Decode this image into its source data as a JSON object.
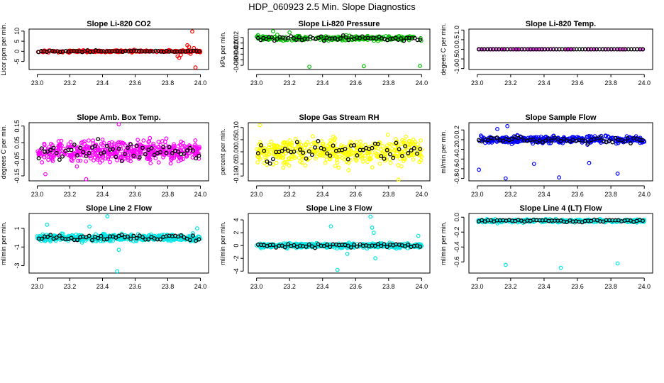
{
  "figure": {
    "title": "HDP_060923  2.5 Min. Slope Diagnostics",
    "highlight_color": "#000000",
    "background_color": "#ffffff"
  },
  "chart_data": [
    {
      "type": "scatter",
      "title": "Slope Li-820 CO2",
      "xlabel": "",
      "ylabel": "Licor ppm per min.",
      "color": "#ff0000",
      "xlim": [
        22.95,
        24.05
      ],
      "ylim": [
        -9,
        11
      ],
      "xticks": [
        "23.0",
        "23.2",
        "23.4",
        "23.6",
        "23.8",
        "24.0"
      ],
      "yticks": [
        "-5",
        "0",
        "5",
        "10"
      ],
      "x_range": [
        23.0,
        24.0
      ],
      "center": 0,
      "spread": 0.5,
      "n_points": 280,
      "n_highlight": 60,
      "seed": 11,
      "outliers": [
        [
          23.86,
          -2.5
        ],
        [
          23.87,
          -3.2
        ],
        [
          23.88,
          -1.8
        ],
        [
          23.92,
          3.0
        ],
        [
          23.93,
          2.2
        ],
        [
          23.95,
          9.8
        ],
        [
          23.97,
          -8.0
        ],
        [
          23.96,
          1.6
        ],
        [
          23.94,
          -1.2
        ]
      ]
    },
    {
      "type": "scatter",
      "title": "Slope Li-820 Pressure",
      "xlabel": "",
      "ylabel": "kPa per min.",
      "color": "#00c000",
      "xlim": [
        22.95,
        24.05
      ],
      "ylim": [
        -0.095,
        0.05
      ],
      "xticks": [
        "23.0",
        "23.2",
        "23.4",
        "23.6",
        "23.8",
        "24.0"
      ],
      "yticks": [
        "-0.08",
        "-0.06",
        "-0.04",
        "-0.02",
        "0.00",
        "0.02"
      ],
      "x_range": [
        23.0,
        24.0
      ],
      "center": 0.017,
      "spread": 0.009,
      "n_points": 230,
      "n_highlight": 60,
      "seed": 23,
      "outliers": [
        [
          23.32,
          -0.085
        ],
        [
          23.65,
          -0.083
        ],
        [
          23.99,
          -0.082
        ],
        [
          23.1,
          0.042
        ],
        [
          23.2,
          0.038
        ]
      ]
    },
    {
      "type": "scatter",
      "title": "Slope Li-820 Temp.",
      "xlabel": "",
      "ylabel": "degees C per min.",
      "color": "#ff00ff",
      "xlim": [
        22.95,
        24.05
      ],
      "ylim": [
        -1.05,
        1.05
      ],
      "xticks": [
        "23.0",
        "23.2",
        "23.4",
        "23.6",
        "23.8",
        "24.0"
      ],
      "yticks": [
        "-1.0",
        "-0.5",
        "0.0",
        "0.5",
        "1.0"
      ],
      "x_range": [
        23.0,
        24.0
      ],
      "center": 0,
      "spread": 0,
      "n_points": 60,
      "n_highlight": 58,
      "seed": 5,
      "outliers": []
    },
    {
      "type": "scatter",
      "title": "Slope Amb. Box Temp.",
      "xlabel": "",
      "ylabel": "degrees C per min.",
      "color": "#ff00ff",
      "xlim": [
        22.95,
        24.05
      ],
      "ylim": [
        -0.18,
        0.17
      ],
      "xticks": [
        "23.0",
        "23.2",
        "23.4",
        "23.6",
        "23.8",
        "24.0"
      ],
      "yticks": [
        "-0.15",
        "-0.05",
        "0.05",
        "0.15"
      ],
      "x_range": [
        23.0,
        24.0
      ],
      "center": 0,
      "spread": 0.06,
      "n_points": 450,
      "n_highlight": 55,
      "seed": 37,
      "outliers": [
        [
          23.3,
          -0.17
        ],
        [
          23.5,
          0.16
        ],
        [
          23.05,
          -0.14
        ]
      ]
    },
    {
      "type": "scatter",
      "title": "Slope Gas Stream RH",
      "xlabel": "",
      "ylabel": "percent per min.",
      "color": "#ffff00",
      "xlim": [
        22.95,
        24.05
      ],
      "ylim": [
        -0.12,
        0.12
      ],
      "xticks": [
        "23.0",
        "23.2",
        "23.4",
        "23.6",
        "23.8",
        "24.0"
      ],
      "yticks": [
        "-0.10",
        "-0.05",
        "0.00",
        "0.05",
        "0.10"
      ],
      "x_range": [
        23.0,
        24.0
      ],
      "center": 0,
      "spread": 0.05,
      "n_points": 450,
      "n_highlight": 55,
      "seed": 41,
      "outliers": [
        [
          23.86,
          -0.115
        ],
        [
          23.02,
          0.11
        ]
      ]
    },
    {
      "type": "scatter",
      "title": "Slope Sample Flow",
      "xlabel": "",
      "ylabel": "ml/min per min.",
      "color": "#0000ff",
      "xlim": [
        22.95,
        24.05
      ],
      "ylim": [
        -0.85,
        0.35
      ],
      "xticks": [
        "23.0",
        "23.2",
        "23.4",
        "23.6",
        "23.8",
        "24.0"
      ],
      "yticks": [
        "-0.8",
        "-0.6",
        "-0.4",
        "-0.2",
        "0.0",
        "0.2"
      ],
      "x_range": [
        23.0,
        24.0
      ],
      "center": 0,
      "spread": 0.07,
      "n_points": 380,
      "n_highlight": 55,
      "seed": 53,
      "outliers": [
        [
          23.01,
          -0.62
        ],
        [
          23.17,
          -0.8
        ],
        [
          23.34,
          -0.5
        ],
        [
          23.49,
          -0.78
        ],
        [
          23.67,
          -0.48
        ],
        [
          23.84,
          -0.7
        ],
        [
          23.18,
          0.28
        ],
        [
          23.12,
          0.22
        ]
      ]
    },
    {
      "type": "scatter",
      "title": "Slope Line 2 Flow",
      "xlabel": "",
      "ylabel": "ml/min per min.",
      "color": "#00e5e5",
      "xlim": [
        22.95,
        24.05
      ],
      "ylim": [
        -3.8,
        2.6
      ],
      "xticks": [
        "23.0",
        "23.2",
        "23.4",
        "23.6",
        "23.8",
        "24.0"
      ],
      "yticks": [
        "-3",
        "-1",
        "1"
      ],
      "x_range": [
        23.0,
        24.0
      ],
      "center": 0,
      "spread": 0.35,
      "n_points": 420,
      "n_highlight": 55,
      "seed": 67,
      "outliers": [
        [
          23.49,
          -3.6
        ],
        [
          23.43,
          2.3
        ],
        [
          23.5,
          -1.3
        ],
        [
          23.06,
          1.4
        ],
        [
          23.32,
          1.2
        ],
        [
          23.98,
          1.0
        ]
      ]
    },
    {
      "type": "scatter",
      "title": "Slope Line 3 Flow",
      "xlabel": "",
      "ylabel": "ml/min per min.",
      "color": "#00e5e5",
      "xlim": [
        22.95,
        24.05
      ],
      "ylim": [
        -4.3,
        5.0
      ],
      "xticks": [
        "23.0",
        "23.2",
        "23.4",
        "23.6",
        "23.8",
        "24.0"
      ],
      "yticks": [
        "-4",
        "-2",
        "0",
        "2",
        "4"
      ],
      "x_range": [
        23.0,
        24.0
      ],
      "center": 0,
      "spread": 0.35,
      "n_points": 420,
      "n_highlight": 55,
      "seed": 79,
      "outliers": [
        [
          23.45,
          3.0
        ],
        [
          23.49,
          -3.8
        ],
        [
          23.69,
          4.5
        ],
        [
          23.7,
          2.8
        ],
        [
          23.71,
          2.0
        ],
        [
          23.98,
          1.5
        ],
        [
          23.72,
          -2.0
        ],
        [
          23.55,
          -1.3
        ]
      ]
    },
    {
      "type": "scatter",
      "title": "Slope Line 4 (LT) Flow",
      "xlabel": "",
      "ylabel": "ml/min per min.",
      "color": "#00e5e5",
      "xlim": [
        22.95,
        24.05
      ],
      "ylim": [
        -0.75,
        0.05
      ],
      "xticks": [
        "23.0",
        "23.2",
        "23.4",
        "23.6",
        "23.8",
        "24.0"
      ],
      "yticks": [
        "-0.6",
        "-0.4",
        "-0.2",
        "0.0"
      ],
      "x_range": [
        23.0,
        24.0
      ],
      "center": -0.05,
      "spread": 0.02,
      "n_points": 300,
      "n_highlight": 55,
      "seed": 97,
      "outliers": [
        [
          23.17,
          -0.64
        ],
        [
          23.5,
          -0.68
        ],
        [
          23.84,
          -0.62
        ]
      ]
    }
  ]
}
